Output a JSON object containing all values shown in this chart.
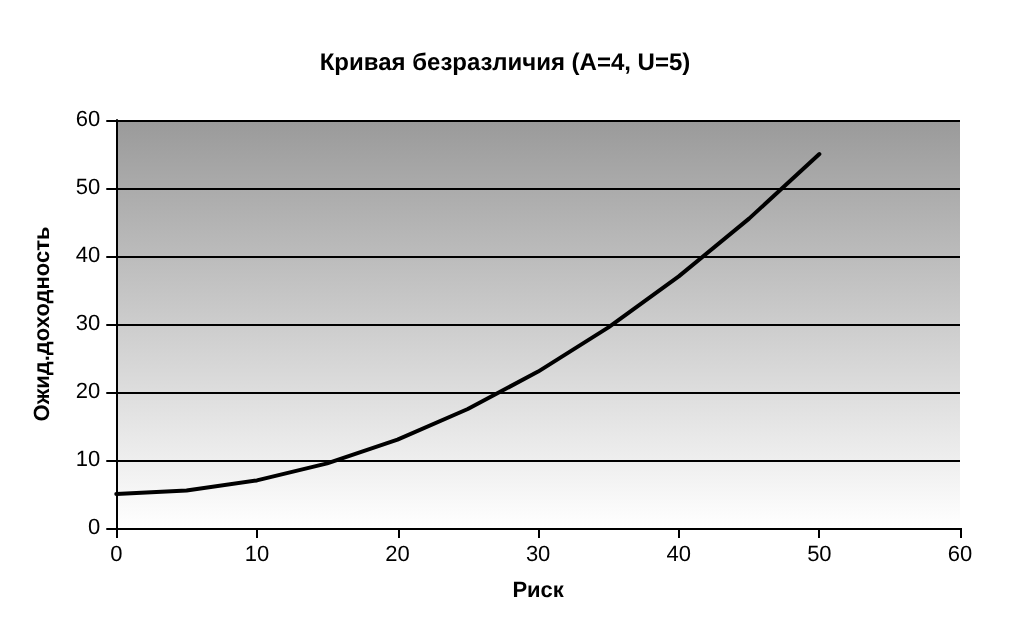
{
  "chart_data": {
    "type": "line",
    "title": "Кривая безразличия (A=4, U=5)",
    "xlabel": "Риск",
    "ylabel": "Ожид.доходность",
    "x": [
      0,
      5,
      10,
      15,
      20,
      25,
      30,
      35,
      40,
      45,
      50
    ],
    "series": [
      {
        "color": "#000000",
        "values": [
          5,
          5.5,
          7,
          9.5,
          13,
          17.5,
          23,
          29.5,
          37,
          45.5,
          55
        ]
      }
    ],
    "xlim": [
      0,
      60
    ],
    "xticks": [
      0,
      10,
      20,
      30,
      40,
      50,
      60
    ],
    "ylim": [
      0,
      60
    ],
    "yticks": [
      0,
      10,
      20,
      30,
      40,
      50,
      60
    ],
    "grid": "y",
    "marker": "none",
    "line_style": "solid"
  }
}
